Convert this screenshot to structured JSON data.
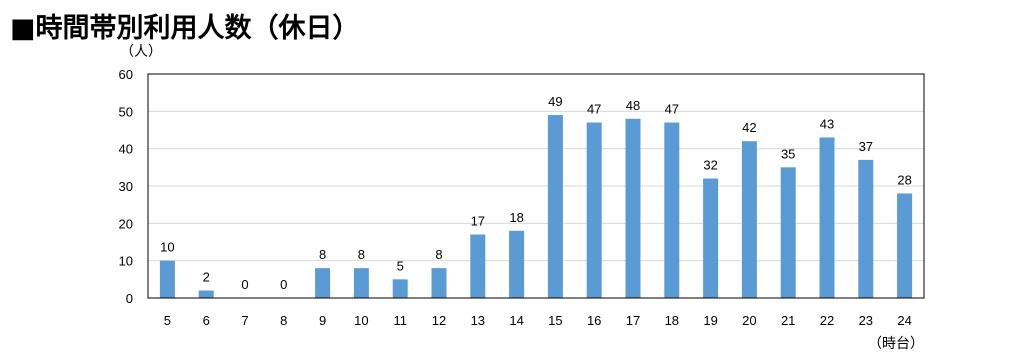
{
  "page": {
    "title": "■時間帯別利用人数（休日）"
  },
  "chart_data": {
    "type": "bar",
    "title": "時間帯別利用人数（休日）",
    "xlabel": "（時台）",
    "ylabel": "（人）",
    "categories": [
      "5",
      "6",
      "7",
      "8",
      "9",
      "10",
      "11",
      "12",
      "13",
      "14",
      "15",
      "16",
      "17",
      "18",
      "19",
      "20",
      "21",
      "22",
      "23",
      "24"
    ],
    "values": [
      10,
      2,
      0,
      0,
      8,
      8,
      5,
      8,
      17,
      18,
      49,
      47,
      48,
      47,
      32,
      42,
      35,
      43,
      37,
      28
    ],
    "data_labels": [
      "10",
      "2",
      "0",
      "0",
      "8",
      "8",
      "5",
      "8",
      "17",
      "18",
      "49",
      "47",
      "48",
      "47",
      "32",
      "42",
      "35",
      "43",
      "37",
      "28"
    ],
    "yticks": [
      0,
      10,
      20,
      30,
      40,
      50,
      60
    ],
    "ylim": [
      0,
      60
    ],
    "grid": true,
    "legend": "none",
    "bar_color": "#5b9bd5",
    "grid_color": "#d9d9d9",
    "border_color": "#000000"
  }
}
